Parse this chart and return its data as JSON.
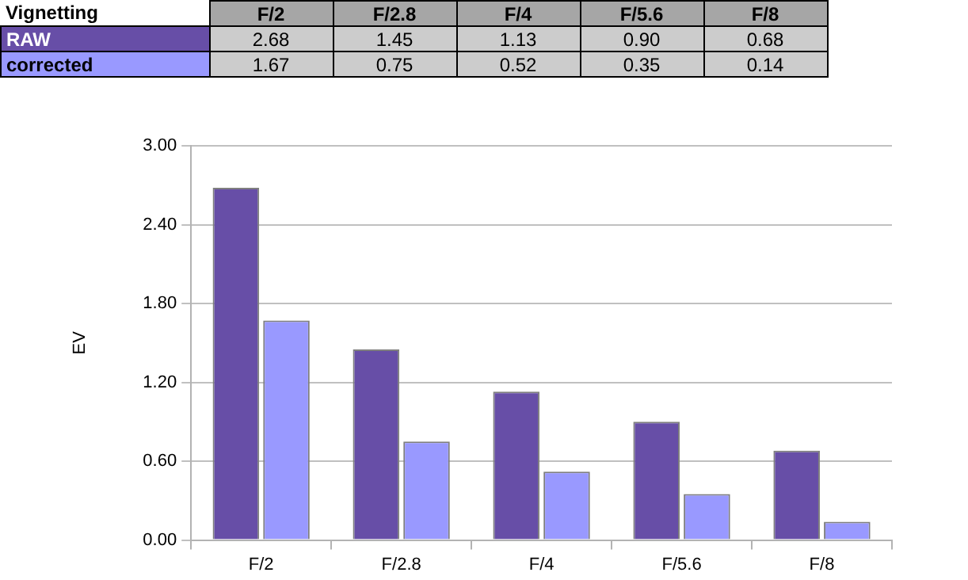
{
  "chart_data": {
    "type": "bar",
    "title": "Vignetting",
    "ylabel": "EV",
    "categories": [
      "F/2",
      "F/2.8",
      "F/4",
      "F/5.6",
      "F/8"
    ],
    "series": [
      {
        "name": "RAW",
        "color": "#674ea7",
        "values": [
          2.68,
          1.45,
          1.13,
          0.9,
          0.68
        ],
        "value_labels": [
          "2.68",
          "1.45",
          "1.13",
          "0.90",
          "0.68"
        ]
      },
      {
        "name": "corrected",
        "color": "#9999ff",
        "values": [
          1.67,
          0.75,
          0.52,
          0.35,
          0.14
        ],
        "value_labels": [
          "1.67",
          "0.75",
          "0.52",
          "0.35",
          "0.14"
        ]
      }
    ],
    "ylim": [
      0,
      3
    ],
    "yticks": [
      {
        "value": 0,
        "label": "0.00"
      },
      {
        "value": 0.6,
        "label": "0.60"
      },
      {
        "value": 1.2,
        "label": "1.20"
      },
      {
        "value": 1.8,
        "label": "1.80"
      },
      {
        "value": 2.4,
        "label": "2.40"
      },
      {
        "value": 3,
        "label": "3.00"
      }
    ],
    "grid": "y"
  }
}
